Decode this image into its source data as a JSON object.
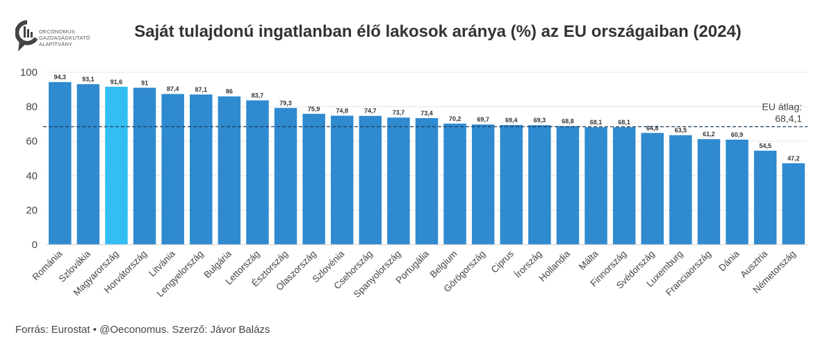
{
  "logo": {
    "text": "OECONOMUS\nGAZDASÁGKUTATÓ\nALAPÍTVÁNY"
  },
  "title": "Saját tulajdonú ingatlanban élő lakosok aránya (%) az EU országaiban (2024)",
  "source": "Forrás: Eurostat • @Oeconomus. Szerző: Jávor Balázs",
  "colors": {
    "bar": "#2f8ad0",
    "highlight": "#33bdf2",
    "grid": "#e6e6e6",
    "avg_line": "#1f3b57"
  },
  "chart_data": {
    "type": "bar",
    "title": "Saját tulajdonú ingatlanban élő lakosok aránya (%) az EU országaiban (2024)",
    "categories": [
      "Románia",
      "Szlovákia",
      "Magyarország",
      "Horvátország",
      "Litvánia",
      "Lengyelország",
      "Bulgária",
      "Lettország",
      "Észtország",
      "Olaszország",
      "Szlovénia",
      "Csehország",
      "Spanyolország",
      "Portugália",
      "Belgium",
      "Görögország",
      "Ciprus",
      "Írország",
      "Hollandia",
      "Málta",
      "Finnország",
      "Svédország",
      "Luxemburg",
      "Franciaország",
      "Dánia",
      "Ausztria",
      "Németország"
    ],
    "values": [
      94.3,
      93.1,
      91.6,
      91,
      87.4,
      87.1,
      86,
      83.7,
      79.3,
      75.9,
      74.8,
      74.7,
      73.7,
      73.4,
      70.2,
      69.7,
      69.4,
      69.3,
      68.8,
      68.1,
      68.1,
      64.8,
      63.5,
      61.2,
      60.9,
      54.5,
      47.2
    ],
    "value_labels": [
      "94,3",
      "93,1",
      "91,6",
      "91",
      "87,4",
      "87,1",
      "86",
      "83,7",
      "79,3",
      "75,9",
      "74,8",
      "74,7",
      "73,7",
      "73,4",
      "70,2",
      "69,7",
      "69,4",
      "69,3",
      "68,8",
      "68,1",
      "68,1",
      "64,8",
      "63,5",
      "61,2",
      "60,9",
      "54,5",
      "47,2"
    ],
    "highlight_category": "Magyarország",
    "ylim": [
      0,
      100
    ],
    "yticks": [
      0,
      20,
      40,
      60,
      80,
      100
    ],
    "grid": true,
    "average": {
      "value": 68.4,
      "label_line1": "EU átlag:",
      "label_line2": "68,4,1"
    }
  }
}
